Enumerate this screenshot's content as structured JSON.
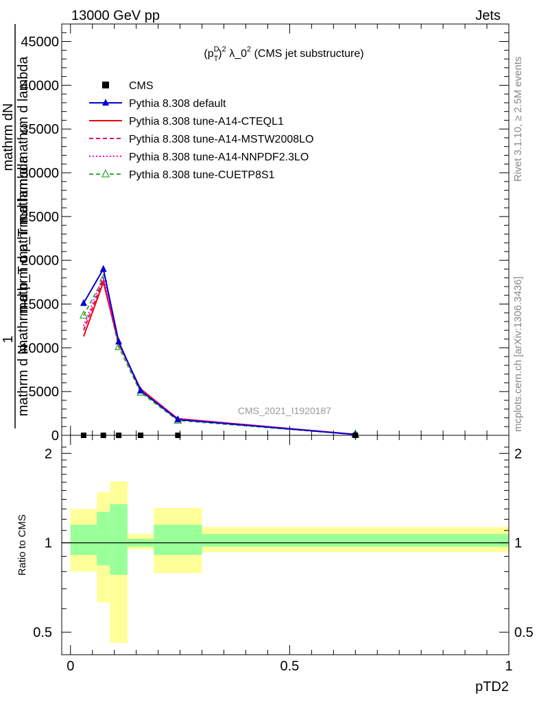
{
  "header": {
    "energy_label": "13000 GeV pp",
    "process_label": "Jets"
  },
  "side_text": {
    "rivet_label": "Rivet 3.1.10, ≥ 2.5M events",
    "source_label": "mcplots.cern.ch [arXiv:1306.3436]"
  },
  "chart_data": [
    {
      "type": "line",
      "title": "(p_T^D)^2 λ_0^2 (CMS jet substructure)",
      "watermark": "CMS_2021_I1920187",
      "xlabel": "pTD2",
      "ylabel_fragments": [
        "1",
        "mathrm d N",
        "mathrm dN",
        "mathrm d p_T mathrm d mathrm d lambda",
        "mathrm d p_T mathrm d lambda"
      ],
      "ylim": [
        0,
        47000
      ],
      "y_ticks": [
        0,
        5000,
        10000,
        15000,
        20000,
        25000,
        30000,
        35000,
        40000,
        45000
      ],
      "y_tick_labels": [
        "0",
        "5000",
        "10000",
        "15000",
        "20000",
        "25000",
        "30000",
        "35000",
        "40000",
        "45000"
      ],
      "xlim": [
        -0.02,
        1.0
      ],
      "x_ticks": [
        0,
        0.5,
        1
      ],
      "x_tick_labels": [
        "0",
        "0.5",
        "1"
      ],
      "legend_position": "top-left",
      "x": [
        0.03,
        0.075,
        0.11,
        0.16,
        0.245,
        0.65
      ],
      "series": [
        {
          "name": "CMS",
          "color": "#000000",
          "marker": "square",
          "values": [
            0,
            0,
            0,
            0,
            0,
            0
          ]
        },
        {
          "name": "Pythia 8.308 default",
          "color": "#0000cc",
          "marker": "triangle",
          "dash": "solid",
          "values": [
            15100,
            19000,
            10700,
            5100,
            1800,
            100
          ]
        },
        {
          "name": "Pythia 8.308 tune-A14-CTEQL1",
          "color": "#ee0000",
          "marker": "none",
          "dash": "solid",
          "values": [
            11300,
            17500,
            10500,
            5300,
            1900,
            100
          ]
        },
        {
          "name": "Pythia 8.308 tune-A14-MSTW2008LO",
          "color": "#dd0077",
          "marker": "none",
          "dash": "dashed",
          "values": [
            12000,
            17800,
            10500,
            5200,
            1900,
            100
          ]
        },
        {
          "name": "Pythia 8.308 tune-A14-NNPDF2.3LO",
          "color": "#ff00cc",
          "marker": "none",
          "dash": "dotted",
          "values": [
            12500,
            18200,
            10600,
            5200,
            1900,
            100
          ]
        },
        {
          "name": "Pythia 8.308 tune-CUETP8S1",
          "color": "#33aa33",
          "marker": "open-triangle",
          "dash": "dashed",
          "values": [
            13700,
            17900,
            10100,
            4900,
            1700,
            100
          ]
        }
      ]
    },
    {
      "type": "area",
      "ylabel": "Ratio to CMS",
      "ylim": [
        0.42,
        2.3
      ],
      "y_ticks": [
        0.5,
        1,
        2
      ],
      "y_tick_labels": [
        "0.5",
        "1",
        "2"
      ],
      "reference": 1,
      "colors": {
        "inner": "#99ff99",
        "outer": "#ffff99"
      },
      "bins": [
        {
          "x_low": 0.0,
          "x_high": 0.06,
          "inner": [
            0.91,
            1.15
          ],
          "outer": [
            0.8,
            1.3
          ]
        },
        {
          "x_low": 0.06,
          "x_high": 0.09,
          "inner": [
            0.84,
            1.27
          ],
          "outer": [
            0.63,
            1.48
          ]
        },
        {
          "x_low": 0.09,
          "x_high": 0.13,
          "inner": [
            0.78,
            1.35
          ],
          "outer": [
            0.46,
            1.61
          ]
        },
        {
          "x_low": 0.13,
          "x_high": 0.19,
          "inner": [
            0.97,
            1.03
          ],
          "outer": [
            0.95,
            1.07
          ]
        },
        {
          "x_low": 0.19,
          "x_high": 0.3,
          "inner": [
            0.91,
            1.15
          ],
          "outer": [
            0.79,
            1.31
          ]
        },
        {
          "x_low": 0.3,
          "x_high": 1.0,
          "inner": [
            0.97,
            1.07
          ],
          "outer": [
            0.93,
            1.13
          ]
        }
      ]
    }
  ]
}
